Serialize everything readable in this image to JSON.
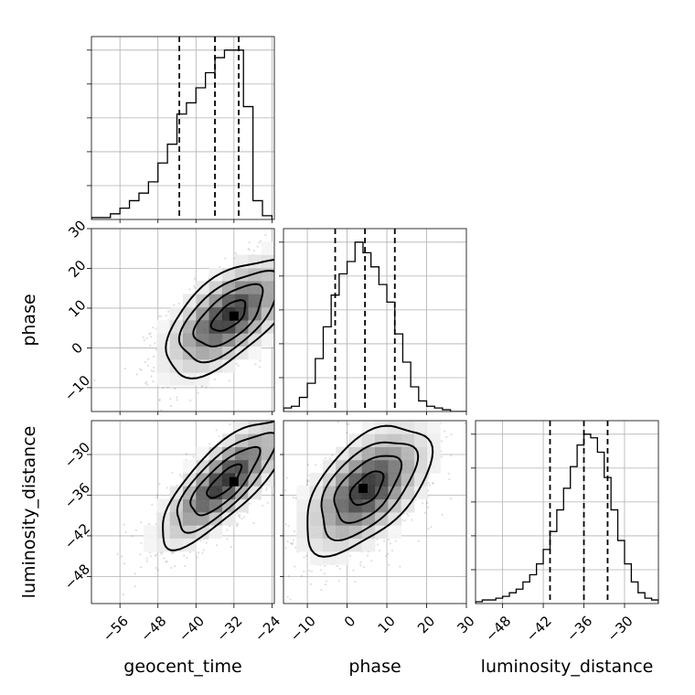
{
  "chart_data": {
    "type": "corner",
    "parameters": [
      {
        "name": "geocent_time",
        "range": [
          -62,
          -23.5
        ],
        "ticks": [
          -56,
          -48,
          -40,
          -32,
          -24
        ],
        "tick_labels": [
          "−56",
          "−48",
          "−40",
          "−32",
          "−24"
        ],
        "quantiles": [
          -43.5,
          -36,
          -31
        ],
        "hist_bin_edges": [
          -62,
          -60,
          -58,
          -56,
          -54,
          -52,
          -50,
          -48,
          -46,
          -44,
          -42,
          -40,
          -38,
          -36,
          -34,
          -32,
          -30,
          -28,
          -26,
          -24
        ],
        "hist_counts": [
          1,
          1,
          3,
          6,
          10,
          14,
          20,
          30,
          40,
          56,
          62,
          70,
          78,
          86,
          90,
          90,
          60,
          10,
          2
        ]
      },
      {
        "name": "phase",
        "range": [
          -16,
          30
        ],
        "ticks": [
          -10,
          0,
          10,
          20,
          30
        ],
        "tick_labels": [
          "−10",
          "0",
          "10",
          "20",
          "30"
        ],
        "quantiles": [
          -3,
          4.5,
          12
        ],
        "hist_bin_edges": [
          -16,
          -14,
          -12,
          -10,
          -8,
          -6,
          -4,
          -2,
          0,
          2,
          4,
          6,
          8,
          10,
          12,
          14,
          16,
          18,
          20,
          22,
          24,
          26,
          28,
          30
        ],
        "hist_counts": [
          2,
          3,
          8,
          16,
          30,
          48,
          66,
          78,
          85,
          96,
          90,
          82,
          72,
          62,
          44,
          28,
          14,
          6,
          3,
          2,
          1,
          0,
          0
        ]
      },
      {
        "name": "luminosity_distance",
        "range": [
          -52,
          -25
        ],
        "ticks": [
          -48,
          -42,
          -36,
          -30
        ],
        "tick_labels": [
          "−48",
          "−42",
          "−36",
          "−30"
        ],
        "quantiles": [
          -41,
          -36,
          -32.5
        ],
        "hist_bin_edges": [
          -52,
          -51,
          -50,
          -49,
          -48,
          -47,
          -46,
          -45,
          -44,
          -43,
          -42,
          -41,
          -40,
          -39,
          -38,
          -37,
          -36,
          -35,
          -34,
          -33,
          -32,
          -31,
          -30,
          -29,
          -28,
          -27,
          -26,
          -25
        ],
        "hist_counts": [
          1,
          2,
          2,
          3,
          4,
          6,
          8,
          12,
          16,
          22,
          30,
          40,
          52,
          64,
          76,
          88,
          94,
          92,
          84,
          70,
          52,
          35,
          22,
          12,
          6,
          3,
          2
        ]
      }
    ],
    "ticks_2d": {
      "phase_y": [
        -10,
        0,
        10,
        20,
        30
      ],
      "phase_y_labels": [
        "−10",
        "0",
        "10",
        "20",
        "30"
      ],
      "luminosity_distance_y": [
        -48,
        -42,
        -36,
        -30
      ],
      "luminosity_distance_y_labels": [
        "−48",
        "−42",
        "−36",
        "−30"
      ]
    },
    "density_2d": [
      {
        "x": "geocent_time",
        "y": "phase",
        "center": [
          -33,
          8
        ],
        "sigma": [
          6.5,
          7
        ],
        "corr": 0.62,
        "mode": [
          -32,
          8
        ]
      },
      {
        "x": "geocent_time",
        "y": "luminosity_distance",
        "center": [
          -34,
          -34
        ],
        "sigma": [
          6.5,
          4.5
        ],
        "corr": 0.78,
        "mode": [
          -32,
          -34
        ]
      },
      {
        "x": "phase",
        "y": "luminosity_distance",
        "center": [
          5,
          -35
        ],
        "sigma": [
          7.5,
          4.5
        ],
        "corr": 0.55,
        "mode": [
          4,
          -35
        ]
      }
    ],
    "contour_levels": [
      "1-sigma",
      "2-sigma",
      "3-sigma"
    ],
    "grid": true,
    "legend": "none"
  },
  "axis_titles": {
    "x": [
      "geocent_time",
      "phase",
      "luminosity_distance"
    ],
    "y": [
      "phase",
      "luminosity_distance"
    ]
  }
}
